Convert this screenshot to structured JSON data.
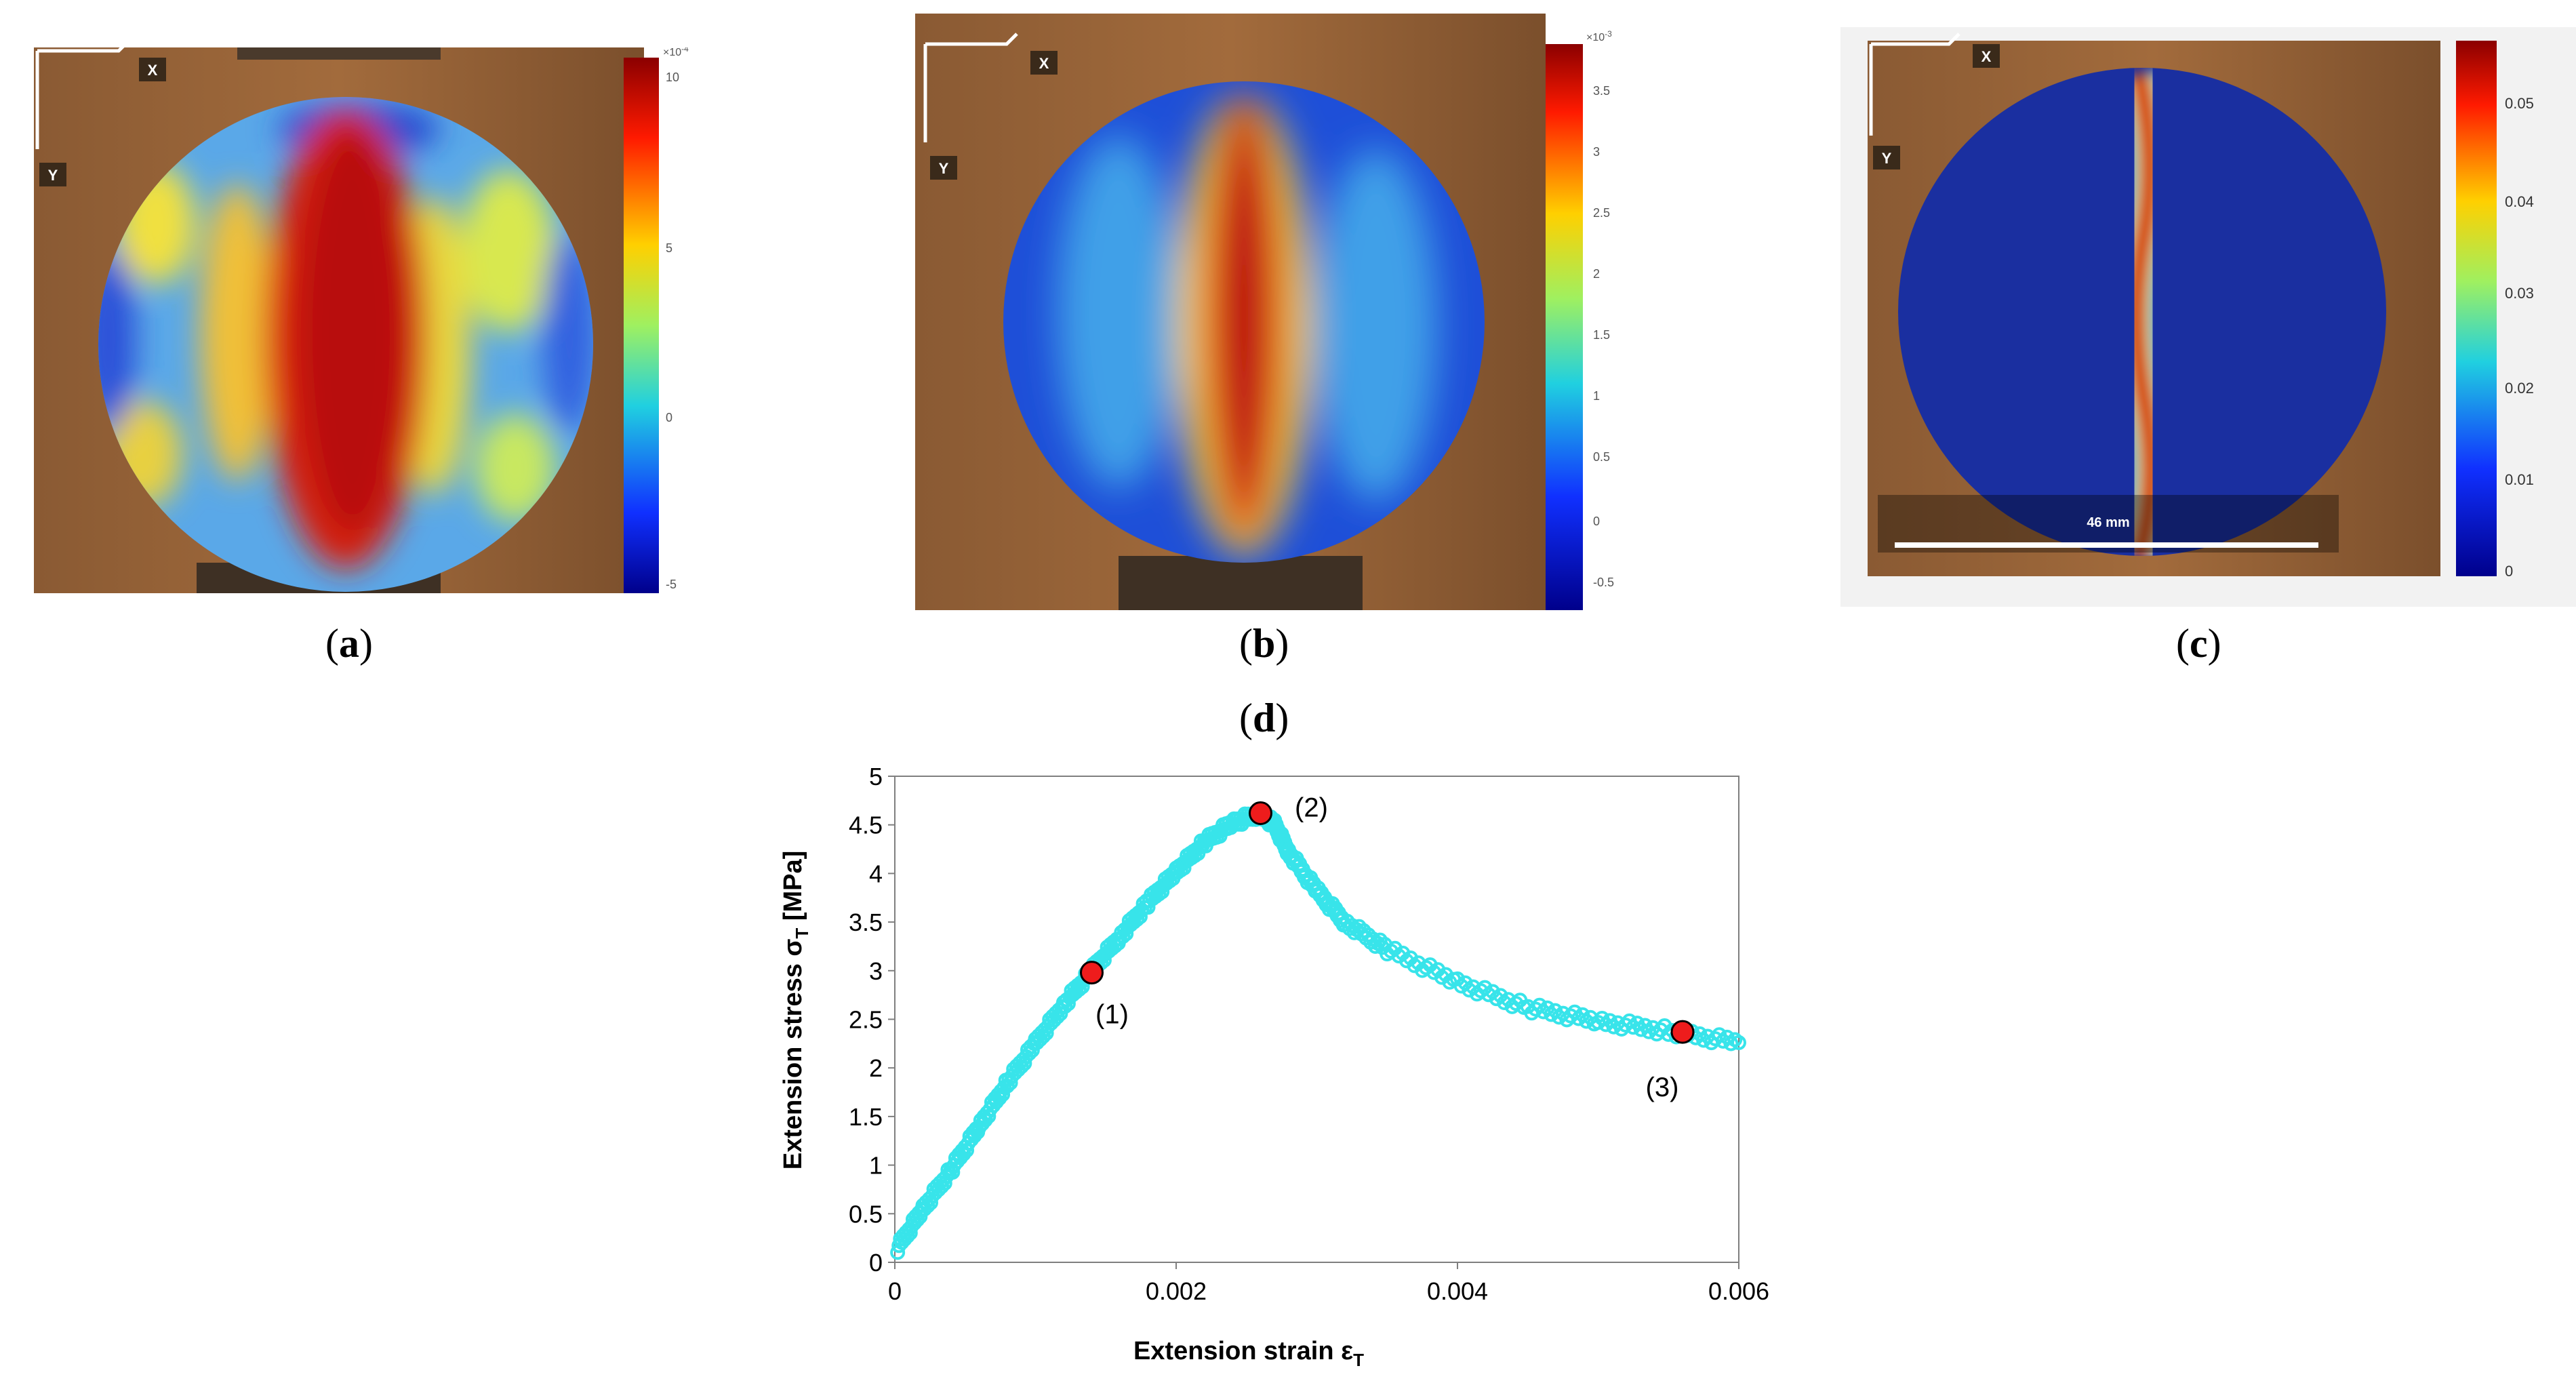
{
  "panels": {
    "a": {
      "label_open": "(",
      "label_letter": "a",
      "label_close": ")",
      "axis_x": "X",
      "axis_y": "Y",
      "colorbar": {
        "exponent": "×10",
        "exponent_power": "-4",
        "ticks": [
          "10",
          "5",
          "0",
          "-5"
        ]
      }
    },
    "b": {
      "label_open": "(",
      "label_letter": "b",
      "label_close": ")",
      "axis_x": "X",
      "axis_y": "Y",
      "colorbar": {
        "exponent": "×10",
        "exponent_power": "-3",
        "ticks": [
          "3.5",
          "3",
          "2.5",
          "2",
          "1.5",
          "1",
          "0.5",
          "0",
          "-0.5"
        ]
      }
    },
    "c": {
      "label_open": "(",
      "label_letter": "c",
      "label_close": ")",
      "axis_x": "X",
      "axis_y": "Y",
      "scale_bar": "46 mm",
      "colorbar": {
        "ticks": [
          "0.05",
          "0.04",
          "0.03",
          "0.02",
          "0.01",
          "0"
        ]
      }
    },
    "d": {
      "label_open": "(",
      "label_letter": "d",
      "label_close": ")"
    }
  },
  "chart_data": {
    "type": "scatter",
    "title": "",
    "xlabel": "Extension strain ε",
    "xlabel_sub": "T",
    "ylabel": "Extension stress σ",
    "ylabel_sub": "T",
    "ylabel_unit": " [MPa]",
    "xlim": [
      0,
      0.006
    ],
    "ylim": [
      0,
      5
    ],
    "x_ticks": [
      "0",
      "0.002",
      "0.004",
      "0.006"
    ],
    "y_ticks": [
      "0",
      "0.5",
      "1",
      "1.5",
      "2",
      "2.5",
      "3",
      "3.5",
      "4",
      "4.5",
      "5"
    ],
    "grid": false,
    "series_color": "#38e4ea",
    "marker_color": "#ee1c1c",
    "curve": [
      [
        2e-05,
        0.15
      ],
      [
        0.0002,
        0.55
      ],
      [
        0.0004,
        0.95
      ],
      [
        0.0006,
        1.4
      ],
      [
        0.0008,
        1.85
      ],
      [
        0.001,
        2.25
      ],
      [
        0.0012,
        2.65
      ],
      [
        0.0014,
        3.0
      ],
      [
        0.0016,
        3.35
      ],
      [
        0.0018,
        3.7
      ],
      [
        0.002,
        4.02
      ],
      [
        0.0022,
        4.32
      ],
      [
        0.0024,
        4.52
      ],
      [
        0.0026,
        4.62
      ],
      [
        0.0027,
        4.5
      ],
      [
        0.0028,
        4.22
      ],
      [
        0.003,
        3.82
      ],
      [
        0.0032,
        3.5
      ],
      [
        0.0035,
        3.22
      ],
      [
        0.004,
        2.88
      ],
      [
        0.0045,
        2.62
      ],
      [
        0.005,
        2.48
      ],
      [
        0.0055,
        2.38
      ],
      [
        0.006,
        2.26
      ]
    ],
    "markers": [
      {
        "label": "(1)",
        "x": 0.0014,
        "y": 2.98
      },
      {
        "label": "(2)",
        "x": 0.0026,
        "y": 4.62
      },
      {
        "label": "(3)",
        "x": 0.0056,
        "y": 2.37
      }
    ]
  }
}
